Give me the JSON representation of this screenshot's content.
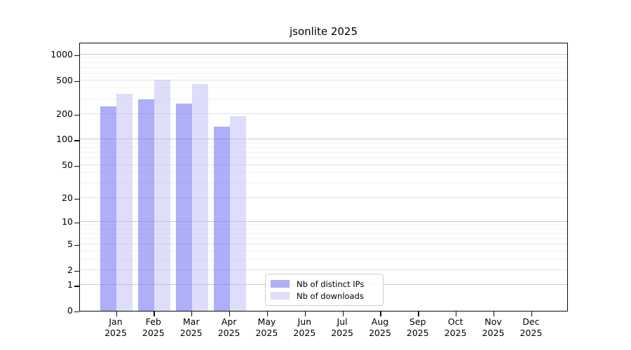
{
  "chart_data": {
    "type": "bar",
    "title": "jsonlite 2025",
    "year": "2025",
    "categories": [
      "Jan",
      "Feb",
      "Mar",
      "Apr",
      "May",
      "Jun",
      "Jul",
      "Aug",
      "Sep",
      "Oct",
      "Nov",
      "Dec"
    ],
    "series": [
      {
        "name": "Nb of distinct IPs",
        "color": "rgba(120,120,245,0.6)",
        "values": [
          248,
          300,
          265,
          141,
          null,
          null,
          null,
          null,
          null,
          null,
          null,
          null
        ]
      },
      {
        "name": "Nb of downloads",
        "color": "rgba(190,190,245,0.5)",
        "values": [
          348,
          508,
          448,
          190,
          null,
          null,
          null,
          null,
          null,
          null,
          null,
          null
        ]
      }
    ],
    "y_ticks": [
      0,
      1,
      2,
      5,
      10,
      20,
      50,
      100,
      200,
      500,
      1000
    ],
    "y_major_gridlines": [
      1,
      10,
      100,
      1000
    ],
    "y_minor_gridlines": [
      3,
      4,
      6,
      7,
      8,
      9,
      30,
      40,
      60,
      70,
      80,
      90,
      300,
      400,
      600,
      700,
      800,
      900
    ],
    "scale": "log1p",
    "ylim": [
      0,
      1400
    ],
    "grid": true,
    "legend_position": "lower center",
    "xlabel": "",
    "ylabel": ""
  },
  "style": {
    "grid_major_color": "#c9c9c9",
    "grid_mid_color": "#e3e3e3",
    "grid_minor_color": "#f1f1f1",
    "axis_color": "#0a0a0a",
    "text_color": "#000000",
    "legend_border_color": "#cccccc",
    "legend_bg_color": "rgba(255,255,255,0.85)"
  }
}
